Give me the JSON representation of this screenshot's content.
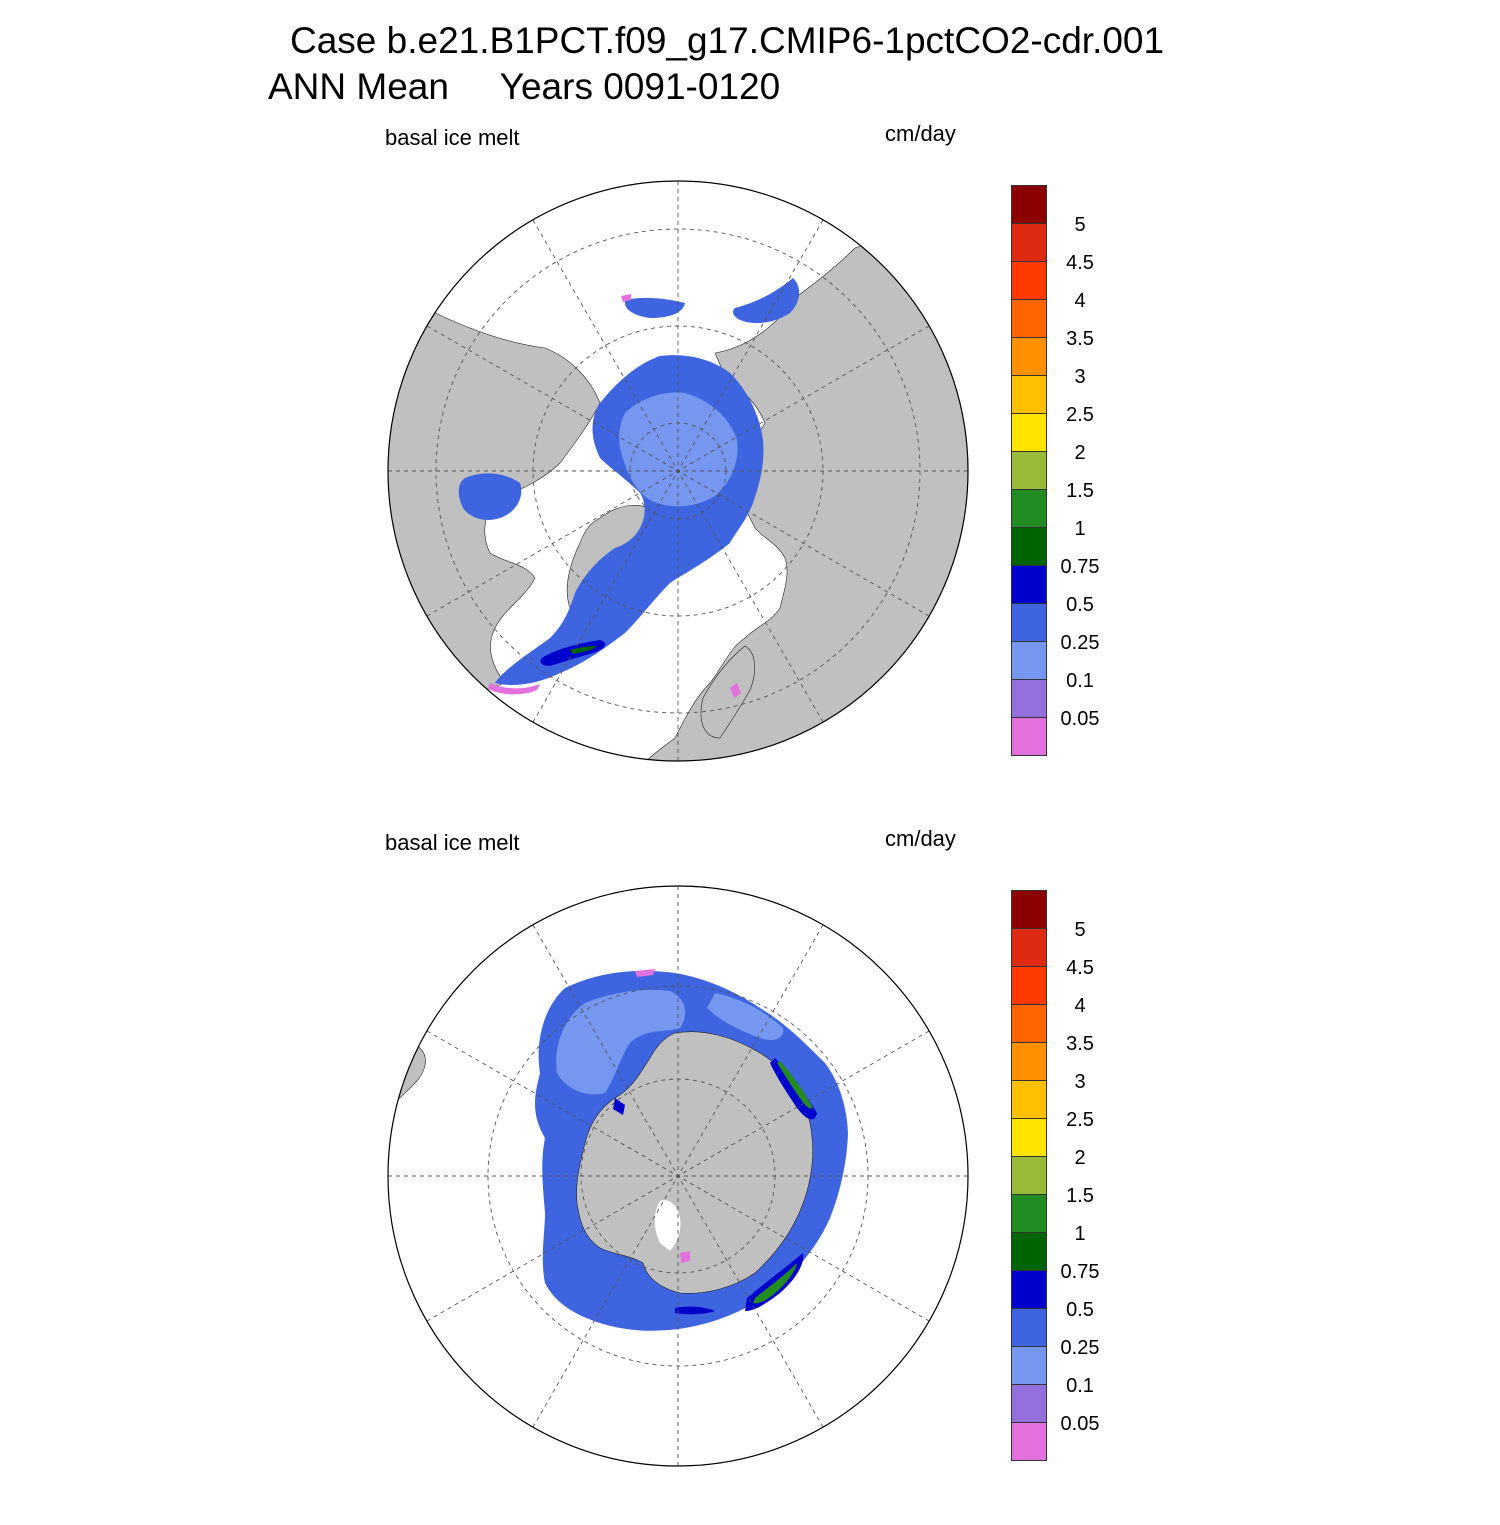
{
  "title": {
    "line1": "Case b.e21.B1PCT.f09_g17.CMIP6-1pctCO2-cdr.001",
    "line2": "ANN Mean     Years 0091-0120"
  },
  "panels": [
    {
      "id": "north",
      "field_label": "basal ice melt",
      "units": "cm/day"
    },
    {
      "id": "south",
      "field_label": "basal ice melt",
      "units": "cm/day"
    }
  ],
  "colorbar": {
    "labels": [
      "5",
      "4.5",
      "4",
      "3.5",
      "3",
      "2.5",
      "2",
      "1.5",
      "1",
      "0.75",
      "0.5",
      "0.25",
      "0.1",
      "0.05"
    ],
    "colors_top_to_bottom": [
      "#8b0000",
      "#dd2a10",
      "#ff3a00",
      "#ff6400",
      "#ff9000",
      "#ffc000",
      "#ffe400",
      "#98bb3a",
      "#228b22",
      "#006400",
      "#0000cd",
      "#3e64e0",
      "#7597f0",
      "#9370db",
      "#e270dd"
    ]
  },
  "colors": {
    "land": "#c0c0c0",
    "ocean_no_ice": "#ffffff",
    "grid": "#555555"
  }
}
